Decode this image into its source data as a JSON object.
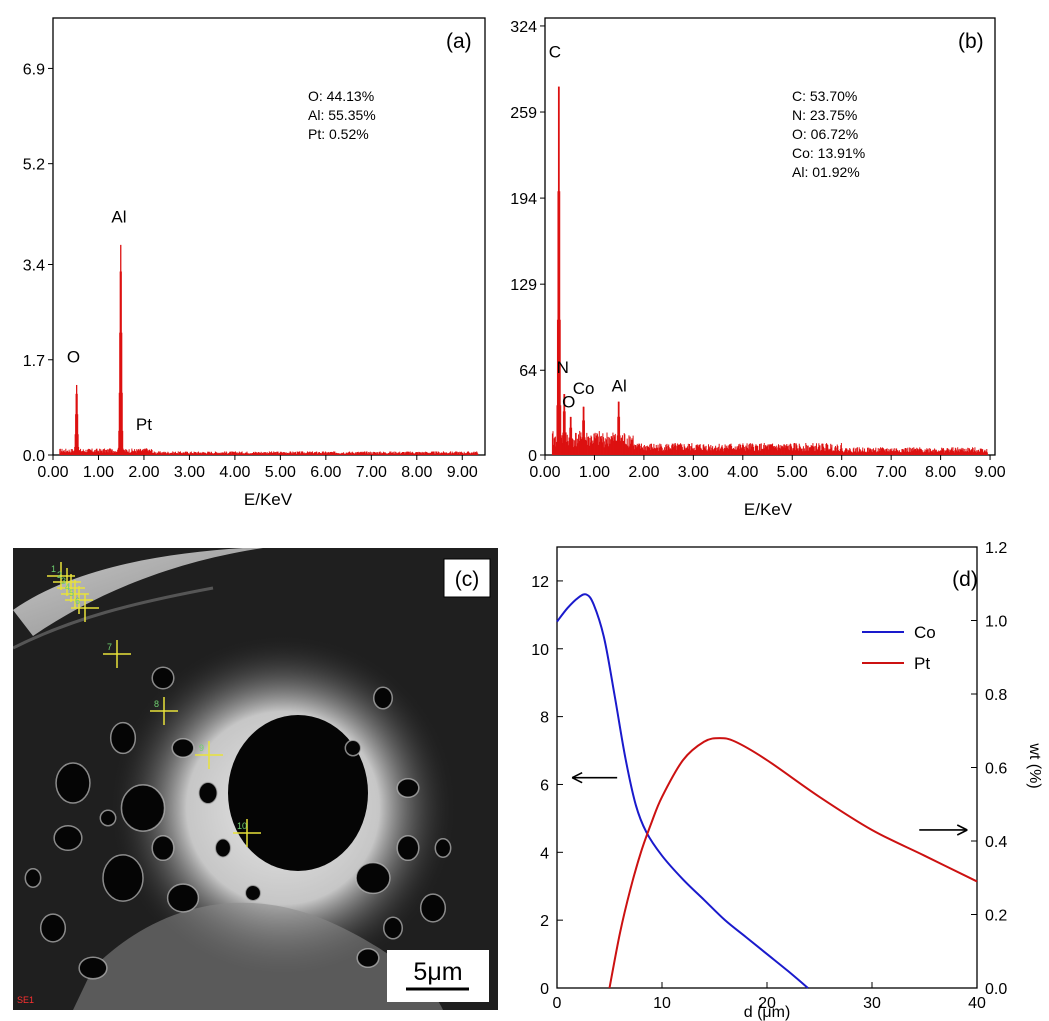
{
  "panels": {
    "a": {
      "label": "(a)"
    },
    "b": {
      "label": "(b)"
    },
    "c": {
      "label": "(c)",
      "scale_bar": "5μm",
      "corner_text": "SE1",
      "markers": [
        "1",
        "2",
        "3",
        "4",
        "5",
        "6",
        "7",
        "8",
        "9",
        "10"
      ]
    },
    "d": {
      "label": "(d)"
    }
  },
  "colors": {
    "spectrum": "#dd1111",
    "co": "#1a1acc",
    "pt": "#cc1111",
    "axis": "#000000"
  },
  "chart_data": [
    {
      "id": "a",
      "type": "bar",
      "xlabel": "E/KeV",
      "ylabel": "",
      "xlim": [
        0,
        9.5
      ],
      "ylim": [
        0,
        7.8
      ],
      "xticks": [
        "0.00",
        "1.00",
        "2.00",
        "3.00",
        "4.00",
        "5.00",
        "6.00",
        "7.00",
        "8.00",
        "9.00"
      ],
      "yticks": [
        "0.0",
        "1.7",
        "3.4",
        "5.2",
        "6.9"
      ],
      "ytick_values": [
        0,
        1.7,
        3.4,
        5.2,
        6.9
      ],
      "composition": [
        "O: 44.13%",
        "Al: 55.35%",
        "Pt: 0.52%"
      ],
      "peaks": [
        {
          "element": "O",
          "energy": 0.52,
          "value": 1.25
        },
        {
          "element": "Al",
          "energy": 1.49,
          "value": 3.75
        },
        {
          "element": "Pt",
          "energy": 2.05,
          "value": 0.12
        }
      ],
      "peak_labels": [
        {
          "text": "O",
          "energy": 0.45,
          "value": 1.65
        },
        {
          "text": "Al",
          "energy": 1.45,
          "value": 4.15
        },
        {
          "text": "Pt",
          "energy": 2.0,
          "value": 0.45
        }
      ]
    },
    {
      "id": "b",
      "type": "bar",
      "xlabel": "E/KeV",
      "ylabel": "",
      "xlim": [
        0,
        9.1
      ],
      "ylim": [
        0,
        330
      ],
      "xticks": [
        "0.00",
        "1.00",
        "2.00",
        "3.00",
        "4.00",
        "5.00",
        "6.00",
        "7.00",
        "8.00",
        "9.00"
      ],
      "yticks": [
        "0",
        "64",
        "129",
        "194",
        "259",
        "324"
      ],
      "ytick_values": [
        0,
        64,
        129,
        194,
        259,
        324
      ],
      "composition": [
        "C: 53.70%",
        "N: 23.75%",
        "O: 06.72%",
        "Co: 13.91%",
        "Al: 01.92%"
      ],
      "peaks": [
        {
          "element": "C",
          "energy": 0.28,
          "value": 290
        },
        {
          "element": "N",
          "energy": 0.39,
          "value": 48
        },
        {
          "element": "O",
          "energy": 0.52,
          "value": 30
        },
        {
          "element": "Co",
          "energy": 0.78,
          "value": 38
        },
        {
          "element": "Al",
          "energy": 1.49,
          "value": 42
        }
      ],
      "peak_labels": [
        {
          "text": "C",
          "energy": 0.2,
          "value": 300
        },
        {
          "text": "N",
          "energy": 0.36,
          "value": 62
        },
        {
          "text": "O",
          "energy": 0.48,
          "value": 36
        },
        {
          "text": "Co",
          "energy": 0.78,
          "value": 46
        },
        {
          "text": "Al",
          "energy": 1.5,
          "value": 48
        }
      ]
    },
    {
      "id": "d",
      "type": "line",
      "xlabel": "d (μm)",
      "ylabel": "",
      "y2label": "wt (%)",
      "xlim": [
        0,
        40
      ],
      "ylim": [
        0,
        13
      ],
      "y2lim": [
        0,
        1.2
      ],
      "xticks": [
        "0",
        "10",
        "20",
        "30",
        "40"
      ],
      "xtick_values": [
        0,
        10,
        20,
        30,
        40
      ],
      "yticks": [
        "0",
        "2",
        "4",
        "6",
        "8",
        "10",
        "12"
      ],
      "ytick_values": [
        0,
        2,
        4,
        6,
        8,
        10,
        12
      ],
      "y2ticks": [
        "0.0",
        "0.2",
        "0.4",
        "0.6",
        "0.8",
        "1.0",
        "1.2"
      ],
      "y2tick_values": [
        0,
        0.2,
        0.4,
        0.6,
        0.8,
        1.0,
        1.2
      ],
      "legend_position": "top-right",
      "series": [
        {
          "name": "Co",
          "axis": "left",
          "x": [
            0,
            1,
            2,
            2.8,
            3.5,
            4.5,
            5.5,
            6.5,
            7.5,
            8.5,
            10,
            12,
            14,
            16,
            18,
            20,
            22,
            23.9
          ],
          "y": [
            10.8,
            11.2,
            11.5,
            11.6,
            11.3,
            10.3,
            8.6,
            6.8,
            5.4,
            4.6,
            3.9,
            3.2,
            2.6,
            2.0,
            1.5,
            1.0,
            0.5,
            0.0
          ]
        },
        {
          "name": "Pt",
          "axis": "right",
          "x": [
            5,
            6,
            7,
            8,
            9,
            10,
            12,
            14,
            15.5,
            17,
            20,
            25,
            30,
            35,
            40
          ],
          "y": [
            0.0,
            0.15,
            0.27,
            0.37,
            0.45,
            0.52,
            0.62,
            0.67,
            0.68,
            0.67,
            0.62,
            0.52,
            0.43,
            0.36,
            0.29
          ]
        }
      ],
      "arrows": [
        {
          "direction": "left",
          "x": 0.3,
          "y": 6.2
        },
        {
          "direction": "right",
          "x": 34.5,
          "y": 0.43
        }
      ]
    }
  ]
}
